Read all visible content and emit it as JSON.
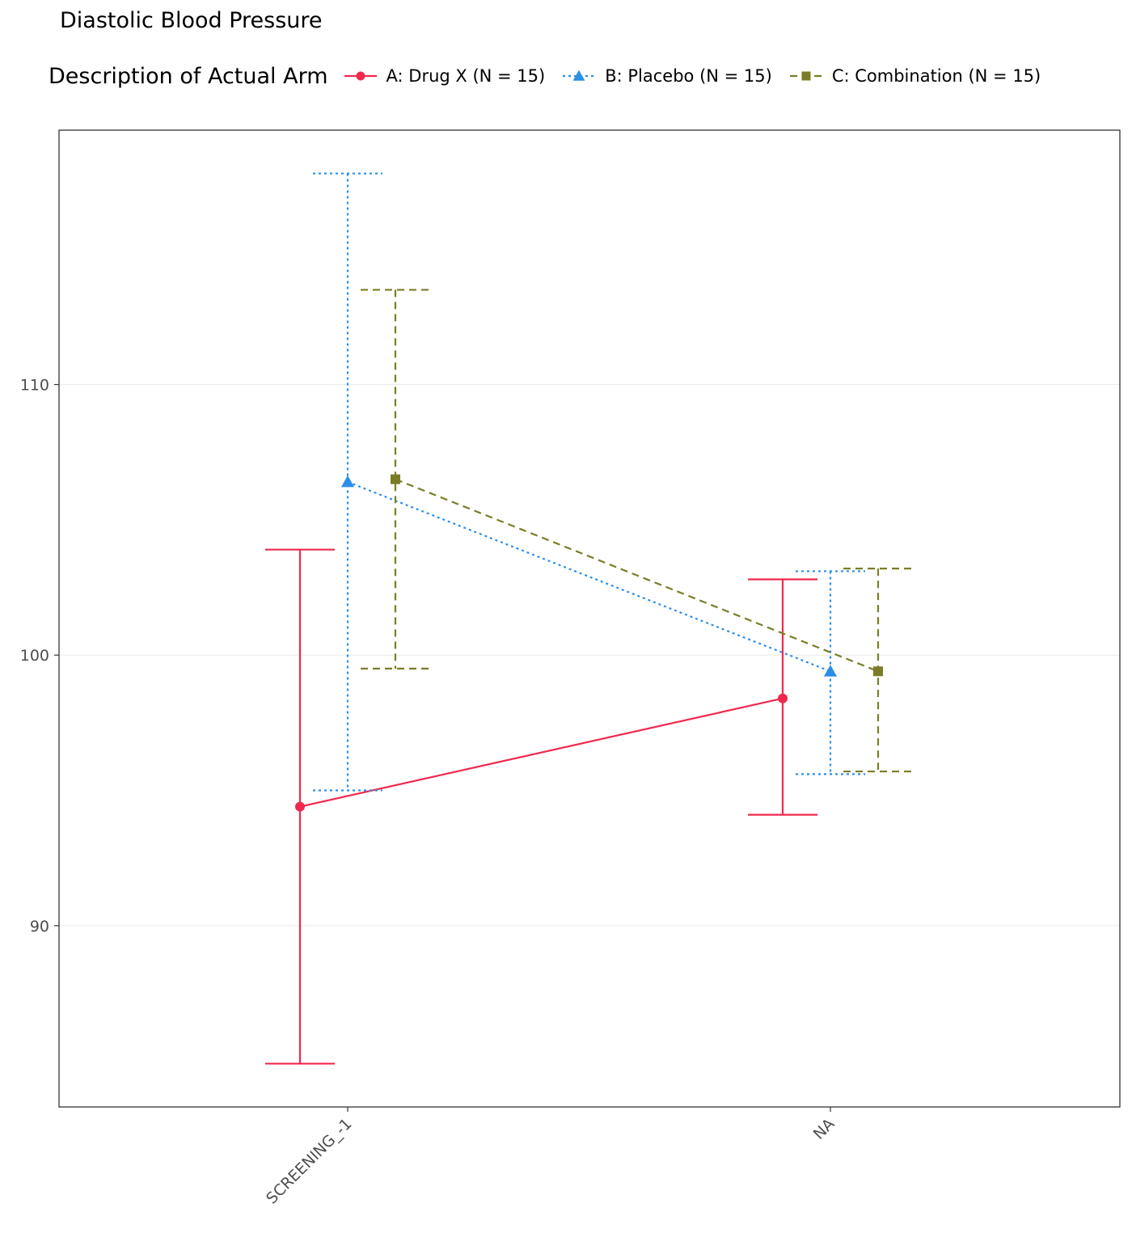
{
  "chart_data": {
    "type": "line",
    "title": "Diastolic Blood Pressure",
    "legend_title": "Description of Actual Arm",
    "legend_position": "top",
    "categories": [
      "SCREENING_-1",
      "NA"
    ],
    "ylim": [
      83.3,
      119.4
    ],
    "yticks": [
      90,
      100,
      110
    ],
    "grid": "horizontal-major",
    "series": [
      {
        "name": "A: Drug X (N = 15)",
        "color": "#f0284e",
        "marker": "circle",
        "linestyle": "solid",
        "mean": [
          94.4,
          98.4
        ],
        "lower": [
          84.9,
          94.1
        ],
        "upper": [
          103.9,
          102.8
        ]
      },
      {
        "name": "B: Placebo (N = 15)",
        "color": "#2b8fe8",
        "marker": "triangle",
        "linestyle": "dotted",
        "mean": [
          106.4,
          99.4
        ],
        "lower": [
          95.0,
          95.6
        ],
        "upper": [
          117.8,
          103.1
        ]
      },
      {
        "name": "C: Combination (N = 15)",
        "color": "#7b7d26",
        "marker": "square",
        "linestyle": "dashed",
        "mean": [
          106.5,
          99.4
        ],
        "lower": [
          99.5,
          95.7
        ],
        "upper": [
          113.5,
          103.2
        ]
      }
    ]
  }
}
